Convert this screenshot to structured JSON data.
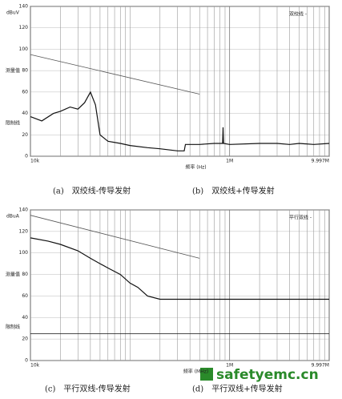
{
  "chart_data": [
    {
      "type": "line",
      "y_unit": "dBuV",
      "x_label": "频率 (Hz)",
      "log_x": true,
      "grid": true,
      "xlim": [
        0.01,
        10
      ],
      "ylim": [
        0,
        140
      ],
      "xticks": [
        {
          "value": 0.01,
          "label": "10k"
        },
        {
          "value": 1,
          "label": "1M"
        },
        {
          "value": 9.997,
          "label": "9.997M"
        }
      ],
      "xminor_ticks": [
        0.02,
        0.03,
        0.04,
        0.05,
        0.06,
        0.07,
        0.08,
        0.09,
        0.1,
        0.2,
        0.3,
        0.4,
        0.5,
        0.6,
        0.7,
        0.8,
        0.9,
        2,
        3,
        4,
        5,
        6,
        7,
        8,
        9
      ],
      "yticks": [
        0,
        20,
        40,
        60,
        80,
        100,
        120,
        140
      ],
      "annotations": [
        "测量值",
        "限制线"
      ],
      "series": [
        {
          "name": "双绞线 -",
          "color": "#111",
          "x": [
            0.01,
            0.013,
            0.017,
            0.02,
            0.025,
            0.03,
            0.035,
            0.04,
            0.045,
            0.05,
            0.06,
            0.08,
            0.1,
            0.15,
            0.2,
            0.3,
            0.35,
            0.36,
            0.5,
            0.7,
            0.85,
            0.86,
            0.87,
            1,
            2,
            3,
            4,
            5,
            7,
            10
          ],
          "values": [
            37,
            33,
            40,
            42,
            46,
            44,
            50,
            60,
            48,
            20,
            14,
            12,
            10,
            8,
            7,
            5,
            5,
            11,
            11,
            12,
            12,
            27,
            12,
            11,
            12,
            12,
            11,
            12,
            11,
            12
          ]
        },
        {
          "color": "#555",
          "x": [
            0.01,
            0.5
          ],
          "values": [
            95,
            58
          ]
        }
      ]
    },
    {
      "type": "line",
      "y_unit": "dBuA",
      "x_label": "频率 (MHz)",
      "log_x": true,
      "grid": true,
      "xlim": [
        0.01,
        10
      ],
      "ylim": [
        0,
        140
      ],
      "xticks": [
        {
          "value": 0.01,
          "label": "10k"
        },
        {
          "value": 1,
          "label": "1M"
        },
        {
          "value": 9.997,
          "label": "9.997M"
        }
      ],
      "xminor_ticks": [
        0.02,
        0.03,
        0.04,
        0.05,
        0.06,
        0.07,
        0.08,
        0.09,
        0.1,
        0.2,
        0.3,
        0.4,
        0.5,
        0.6,
        0.7,
        0.8,
        0.9,
        2,
        3,
        4,
        5,
        6,
        7,
        8,
        9
      ],
      "yticks": [
        0,
        20,
        40,
        60,
        80,
        100,
        120,
        140
      ],
      "annotations": [
        "测量值",
        "限制线"
      ],
      "series": [
        {
          "name": "平行双线 -",
          "color": "#111",
          "x": [
            0.01,
            0.015,
            0.02,
            0.03,
            0.04,
            0.05,
            0.06,
            0.08,
            0.1,
            0.12,
            0.15,
            0.2,
            0.5,
            1,
            3,
            10
          ],
          "values": [
            114,
            111,
            108,
            102,
            95,
            90,
            86,
            80,
            72,
            68,
            60,
            57,
            57,
            57,
            57,
            57
          ]
        },
        {
          "color": "#555",
          "x": [
            0.01,
            0.5
          ],
          "values": [
            135,
            95
          ]
        },
        {
          "color": "#111",
          "x": [
            0.01,
            10
          ],
          "values": [
            25,
            25
          ]
        }
      ]
    }
  ],
  "captions": [
    "(a)　双绞线-传导发射",
    "(b)　双绞线+传导发射",
    "(c)　平行双线-传导发射",
    "(d)　平行双线+传导发射"
  ],
  "watermark": "safetyemc.cn"
}
